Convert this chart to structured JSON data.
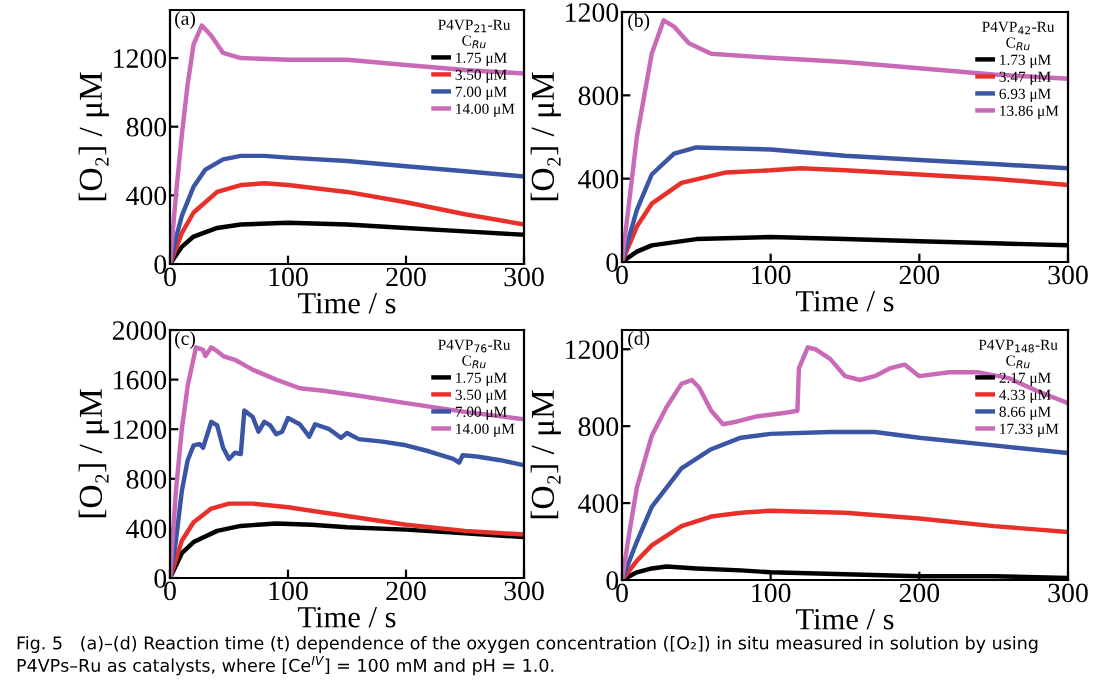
{
  "chart_data": [
    {
      "type": "line",
      "xlabel": "Time / s",
      "ylabel": "[O₂] / μM",
      "legend_title": "P4VP$_{21}$-Ru\nC$_{Ru}$",
      "annotations": [
        "(a)"
      ],
      "xlim": [
        0,
        300
      ],
      "xticks": [
        0,
        100,
        200,
        300
      ],
      "ylim": [
        0,
        1480
      ],
      "yticks": [
        0,
        400,
        800,
        1200
      ],
      "legend": "top right",
      "grid": false,
      "series": [
        {
          "name": "1.75 μM",
          "color": "#000000",
          "x": [
            0,
            10,
            20,
            40,
            60,
            100,
            150,
            200,
            250,
            300
          ],
          "values": [
            0,
            100,
            160,
            210,
            230,
            240,
            230,
            210,
            190,
            170
          ]
        },
        {
          "name": "3.50 μM",
          "color": "#e8302a",
          "x": [
            0,
            10,
            20,
            40,
            60,
            80,
            100,
            150,
            200,
            250,
            300
          ],
          "values": [
            0,
            180,
            300,
            420,
            460,
            470,
            460,
            420,
            360,
            290,
            230
          ]
        },
        {
          "name": "7.00 μM",
          "color": "#3a55a4",
          "x": [
            0,
            5,
            10,
            20,
            30,
            45,
            60,
            80,
            100,
            150,
            200,
            250,
            300
          ],
          "values": [
            0,
            150,
            280,
            450,
            550,
            610,
            630,
            630,
            620,
            600,
            570,
            540,
            510
          ]
        },
        {
          "name": "14.00 μM",
          "color": "#c86ab8",
          "x": [
            0,
            5,
            10,
            15,
            20,
            27,
            35,
            45,
            60,
            100,
            150,
            200,
            250,
            300
          ],
          "values": [
            0,
            400,
            750,
            1050,
            1280,
            1390,
            1330,
            1230,
            1200,
            1190,
            1190,
            1160,
            1130,
            1110
          ]
        }
      ]
    },
    {
      "type": "line",
      "xlabel": "Time / s",
      "ylabel": "[O₂] / μM",
      "legend_title": "P4VP$_{42}$-Ru\nC$_{Ru}$",
      "annotations": [
        "(b)"
      ],
      "xlim": [
        0,
        300
      ],
      "xticks": [
        0,
        100,
        200,
        300
      ],
      "ylim": [
        0,
        1200
      ],
      "yticks": [
        0,
        400,
        800,
        1200
      ],
      "legend": "top right",
      "grid": false,
      "series": [
        {
          "name": "1.73 μM",
          "color": "#000000",
          "x": [
            0,
            10,
            20,
            50,
            100,
            150,
            200,
            250,
            300
          ],
          "values": [
            0,
            50,
            80,
            110,
            120,
            110,
            100,
            90,
            80
          ]
        },
        {
          "name": "3.47 μM",
          "color": "#e8302a",
          "x": [
            0,
            10,
            20,
            40,
            70,
            100,
            120,
            150,
            200,
            250,
            300
          ],
          "values": [
            0,
            170,
            280,
            380,
            430,
            440,
            450,
            440,
            420,
            400,
            370
          ]
        },
        {
          "name": "6.93 μM",
          "color": "#3a55a4",
          "x": [
            0,
            10,
            20,
            35,
            50,
            100,
            150,
            200,
            250,
            300
          ],
          "values": [
            0,
            250,
            420,
            520,
            550,
            540,
            510,
            490,
            470,
            450
          ]
        },
        {
          "name": "13.86 μM",
          "color": "#c86ab8",
          "x": [
            0,
            5,
            10,
            20,
            28,
            35,
            45,
            60,
            100,
            150,
            200,
            250,
            300
          ],
          "values": [
            0,
            300,
            600,
            1000,
            1160,
            1130,
            1050,
            1000,
            980,
            960,
            930,
            900,
            880
          ]
        }
      ]
    },
    {
      "type": "line",
      "xlabel": "Time / s",
      "ylabel": "[O₂] / μM",
      "legend_title": "P4VP$_{76}$-Ru\nC$_{Ru}$",
      "annotations": [
        "(c)"
      ],
      "xlim": [
        0,
        300
      ],
      "xticks": [
        0,
        100,
        200,
        300
      ],
      "ylim": [
        0,
        2000
      ],
      "yticks": [
        0,
        400,
        800,
        1200,
        1600,
        2000
      ],
      "legend": "top right",
      "grid": false,
      "series": [
        {
          "name": "1.75 μM",
          "color": "#000000",
          "x": [
            0,
            10,
            20,
            40,
            60,
            90,
            120,
            150,
            200,
            250,
            300
          ],
          "values": [
            0,
            200,
            290,
            380,
            420,
            440,
            430,
            410,
            390,
            360,
            330
          ]
        },
        {
          "name": "3.50 μM",
          "color": "#e8302a",
          "x": [
            0,
            10,
            20,
            35,
            50,
            70,
            100,
            150,
            200,
            250,
            300
          ],
          "values": [
            0,
            300,
            450,
            560,
            600,
            600,
            570,
            500,
            430,
            380,
            350
          ]
        },
        {
          "name": "7.00 μM",
          "color": "#3a55a4",
          "x": [
            0,
            5,
            10,
            15,
            20,
            25,
            28,
            35,
            40,
            45,
            50,
            55,
            60,
            63,
            70,
            75,
            80,
            85,
            90,
            95,
            100,
            110,
            118,
            123,
            135,
            145,
            150,
            160,
            180,
            200,
            220,
            240,
            245,
            248,
            260,
            280,
            300
          ],
          "values": [
            0,
            300,
            700,
            950,
            1070,
            1080,
            1050,
            1260,
            1230,
            1050,
            960,
            1010,
            1000,
            1350,
            1300,
            1180,
            1260,
            1230,
            1160,
            1180,
            1290,
            1240,
            1140,
            1240,
            1200,
            1130,
            1170,
            1120,
            1100,
            1070,
            1020,
            960,
            930,
            990,
            980,
            950,
            910
          ]
        },
        {
          "name": "14.00 μM",
          "color": "#c86ab8",
          "x": [
            0,
            5,
            10,
            15,
            22,
            28,
            30,
            35,
            40,
            45,
            55,
            70,
            90,
            110,
            130,
            160,
            200,
            250,
            300
          ],
          "values": [
            0,
            700,
            1200,
            1550,
            1860,
            1840,
            1790,
            1860,
            1830,
            1790,
            1760,
            1680,
            1600,
            1530,
            1510,
            1470,
            1410,
            1340,
            1280
          ]
        }
      ]
    },
    {
      "type": "line",
      "xlabel": "Time / s",
      "ylabel": "[O₂] / μM",
      "legend_title": "P4VP$_{148}$-Ru\nC$_{Ru}$",
      "annotations": [
        "(d)",
        "Fig. 5   (a)–(d) Reaction time (t) dependence of the oxygen concentration ([O₂]) in situ measured in solution by using P4VPs–Ru as catalysts, where [Ce$^{IV}$] = 100 mM and pH = 1.0."
      ],
      "xlim": [
        0,
        300
      ],
      "xticks": [
        0,
        100,
        200,
        300
      ],
      "ylim": [
        0,
        1300
      ],
      "yticks": [
        0,
        400,
        800,
        1200
      ],
      "legend": "top right",
      "grid": false,
      "series": [
        {
          "name": "2.17 μM",
          "color": "#000000",
          "x": [
            0,
            10,
            20,
            30,
            50,
            80,
            100,
            150,
            200,
            250,
            300
          ],
          "values": [
            0,
            40,
            60,
            70,
            60,
            50,
            40,
            30,
            20,
            20,
            10
          ]
        },
        {
          "name": "4.33 μM",
          "color": "#e8302a",
          "x": [
            0,
            10,
            20,
            40,
            60,
            80,
            100,
            150,
            200,
            250,
            300
          ],
          "values": [
            0,
            100,
            180,
            280,
            330,
            350,
            360,
            350,
            320,
            280,
            250
          ]
        },
        {
          "name": "8.66 μM",
          "color": "#3a55a4",
          "x": [
            0,
            10,
            20,
            40,
            60,
            80,
            100,
            140,
            170,
            200,
            250,
            300
          ],
          "values": [
            0,
            200,
            380,
            580,
            680,
            740,
            760,
            770,
            770,
            740,
            700,
            660
          ]
        },
        {
          "name": "17.33 μM",
          "color": "#c86ab8",
          "x": [
            0,
            5,
            10,
            20,
            30,
            40,
            47,
            52,
            60,
            68,
            75,
            90,
            110,
            118,
            119,
            125,
            130,
            140,
            150,
            160,
            170,
            180,
            190,
            200,
            220,
            240,
            260,
            280,
            300
          ],
          "values": [
            0,
            250,
            480,
            750,
            900,
            1020,
            1040,
            1000,
            880,
            810,
            820,
            850,
            870,
            880,
            1100,
            1210,
            1200,
            1150,
            1060,
            1040,
            1060,
            1100,
            1120,
            1060,
            1080,
            1080,
            1050,
            980,
            920
          ]
        }
      ]
    }
  ]
}
